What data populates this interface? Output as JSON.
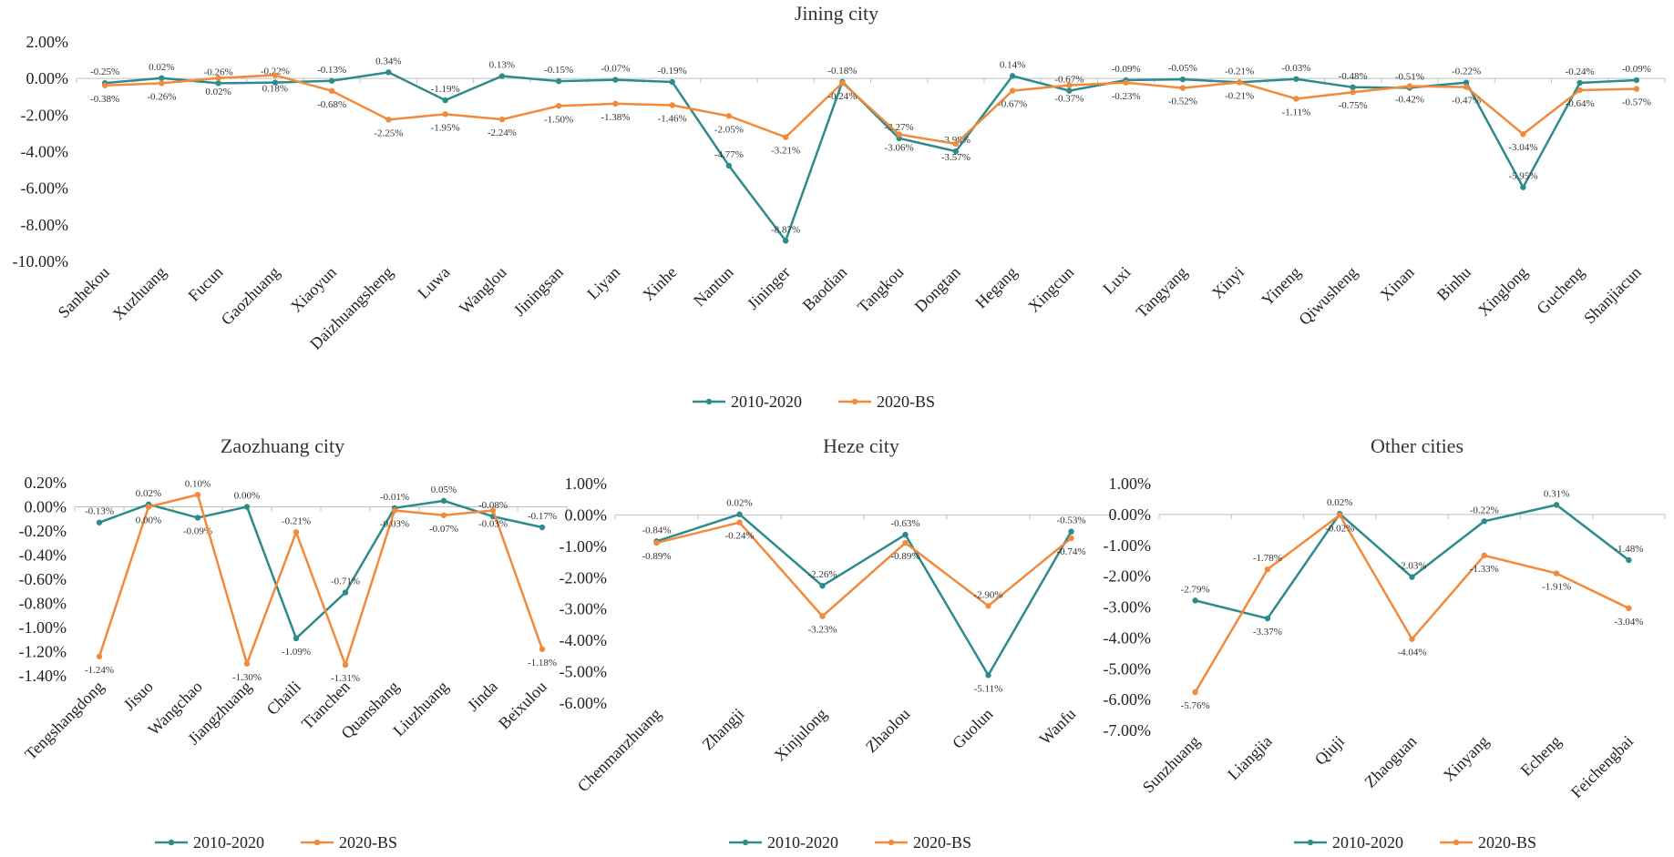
{
  "colors": {
    "series1": "#2e8b8b",
    "series2": "#f28a3c",
    "axis": "#bfbfbf",
    "text": "#222222"
  },
  "legend": [
    "2010-2020",
    "2020-BS"
  ],
  "chart_data": [
    {
      "type": "line",
      "title": "Jining city",
      "categories": [
        "Sanhekou",
        "Xuzhuang",
        "Fucun",
        "Gaozhuang",
        "Xiaoyun",
        "Daizhuangsheng",
        "Luwa",
        "Wanglou",
        "Jiningsan",
        "Liyan",
        "Xinhe",
        "Nantun",
        "Jininger",
        "Baodian",
        "Tangkou",
        "Dongtan",
        "Hegang",
        "Xingcun",
        "Luxi",
        "Tangyang",
        "Xinyi",
        "Yineng",
        "Qiwusheng",
        "Xinan",
        "Binhu",
        "Xinglong",
        "Gucheng",
        "Shanjiacun"
      ],
      "yticks": [
        "2.00%",
        "0.00%",
        "-2.00%",
        "-4.00%",
        "-6.00%",
        "-8.00%",
        "-10.00%"
      ],
      "ylim": [
        -10,
        2
      ],
      "series": [
        {
          "name": "2010-2020",
          "values": [
            -0.25,
            0.02,
            -0.26,
            -0.22,
            -0.13,
            0.34,
            -1.19,
            0.13,
            -0.15,
            -0.07,
            -0.19,
            -4.77,
            -8.87,
            -0.18,
            -3.27,
            -3.98,
            0.14,
            -0.67,
            -0.09,
            -0.05,
            -0.21,
            -0.03,
            -0.48,
            -0.51,
            -0.22,
            -5.95,
            -0.24,
            -0.09
          ],
          "labels": [
            "-0.25%",
            "0.02%",
            "-0.26%",
            "-0.22%",
            "-0.13%",
            "0.34%",
            "-1.19%",
            "0.13%",
            "-0.15%",
            "-0.07%",
            "-0.19%",
            "-4.77%",
            "-8.87%",
            "-0.18%",
            "-3.27%",
            "-3.98%",
            "0.14%",
            "-0.67%",
            "-0.09%",
            "-0.05%",
            "-0.21%",
            "-0.03%",
            "-0.48%",
            "-0.51%",
            "-0.22%",
            "-5.95%",
            "-0.24%",
            "-0.09%"
          ]
        },
        {
          "name": "2020-BS",
          "values": [
            -0.38,
            -0.26,
            0.02,
            0.18,
            -0.68,
            -2.25,
            -1.95,
            -2.24,
            -1.5,
            -1.38,
            -1.46,
            -2.05,
            -3.21,
            -0.24,
            -3.06,
            -3.57,
            -0.67,
            -0.37,
            -0.23,
            -0.52,
            -0.21,
            -1.11,
            -0.75,
            -0.42,
            -0.47,
            -3.04,
            -0.64,
            -0.57
          ],
          "labels": [
            "-0.38%",
            "-0.26%",
            "0.02%",
            "0.18%",
            "-0.68%",
            "-2.25%",
            "-1.95%",
            "-2.24%",
            "-1.50%",
            "-1.38%",
            "-1.46%",
            "-2.05%",
            "-3.21%",
            "-0.24%",
            "-3.06%",
            "-3.57%",
            "-0.67%",
            "-0.37%",
            "-0.23%",
            "-0.52%",
            "-0.21%",
            "-1.11%",
            "-0.75%",
            "-0.42%",
            "-0.47%",
            "-3.04%",
            "-0.64%",
            "-0.57%"
          ]
        }
      ]
    },
    {
      "type": "line",
      "title": "Zaozhuang city",
      "categories": [
        "Tengshangdong",
        "Jisuo",
        "Wangchao",
        "Jiangzhuang",
        "Chaili",
        "Tianchen",
        "Quanshang",
        "Liuzhuang",
        "Jinda",
        "Beixulou"
      ],
      "yticks": [
        "0.20%",
        "0.00%",
        "-0.20%",
        "-0.40%",
        "-0.60%",
        "-0.80%",
        "-1.00%",
        "-1.20%",
        "-1.40%"
      ],
      "ylim": [
        -1.4,
        0.2
      ],
      "series": [
        {
          "name": "2010-2020",
          "values": [
            -0.13,
            0.02,
            -0.09,
            0.0,
            -1.09,
            -0.71,
            -0.01,
            0.05,
            -0.08,
            -0.17
          ],
          "labels": [
            "-0.13%",
            "0.02%",
            "-0.09%",
            "0.00%",
            "-1.09%",
            "-0.71%",
            "-0.01%",
            "0.05%",
            "-0.08%",
            "-0.17%"
          ]
        },
        {
          "name": "2020-BS",
          "values": [
            -1.24,
            0.0,
            0.1,
            -1.3,
            -0.21,
            -1.31,
            -0.03,
            -0.07,
            -0.03,
            -1.18
          ],
          "labels": [
            "-1.24%",
            "0.00%",
            "0.10%",
            "-1.30%",
            "-0.21%",
            "-1.31%",
            "-0.03%",
            "-0.07%",
            "-0.03%",
            "-1.18%"
          ]
        }
      ]
    },
    {
      "type": "line",
      "title": "Heze city",
      "categories": [
        "Chenmanzhuang",
        "Zhangji",
        "Xinjulong",
        "Zhaolou",
        "Guolun",
        "Wanfu"
      ],
      "yticks": [
        "1.00%",
        "0.00%",
        "-1.00%",
        "-2.00%",
        "-3.00%",
        "-4.00%",
        "-5.00%",
        "-6.00%"
      ],
      "ylim": [
        -6,
        1
      ],
      "series": [
        {
          "name": "2010-2020",
          "values": [
            -0.84,
            0.02,
            -2.26,
            -0.63,
            -5.11,
            -0.53
          ],
          "labels": [
            "-0.84%",
            "0.02%",
            "-2.26%",
            "-0.63%",
            "-5.11%",
            "-0.53%"
          ]
        },
        {
          "name": "2020-BS",
          "values": [
            -0.89,
            -0.24,
            -3.23,
            -0.89,
            -2.9,
            -0.74
          ],
          "labels": [
            "-0.89%",
            "-0.24%",
            "-3.23%",
            "-0.89%",
            "-2.90%",
            "-0.74%"
          ]
        }
      ]
    },
    {
      "type": "line",
      "title": "Other cities",
      "categories": [
        "Sunzhuang",
        "Liangjia",
        "Qiuji",
        "Zhaoguan",
        "Xinyang",
        "Echeng",
        "Feichengbai"
      ],
      "yticks": [
        "1.00%",
        "0.00%",
        "-1.00%",
        "-2.00%",
        "-3.00%",
        "-4.00%",
        "-5.00%",
        "-6.00%",
        "-7.00%"
      ],
      "ylim": [
        -7,
        1
      ],
      "series": [
        {
          "name": "2010-2020",
          "values": [
            -2.79,
            -3.37,
            0.02,
            -2.03,
            -0.22,
            0.31,
            -1.48
          ],
          "labels": [
            "-2.79%",
            "-3.37%",
            "0.02%",
            "-2.03%",
            "-0.22%",
            "0.31%",
            "-1.48%"
          ]
        },
        {
          "name": "2020-BS",
          "values": [
            -5.76,
            -1.78,
            -0.02,
            -4.04,
            -1.33,
            -1.91,
            -3.04
          ],
          "labels": [
            "-5.76%",
            "-1.78%",
            "-0.02%",
            "-4.04%",
            "-1.33%",
            "-1.91%",
            "-3.04%"
          ]
        }
      ]
    }
  ]
}
